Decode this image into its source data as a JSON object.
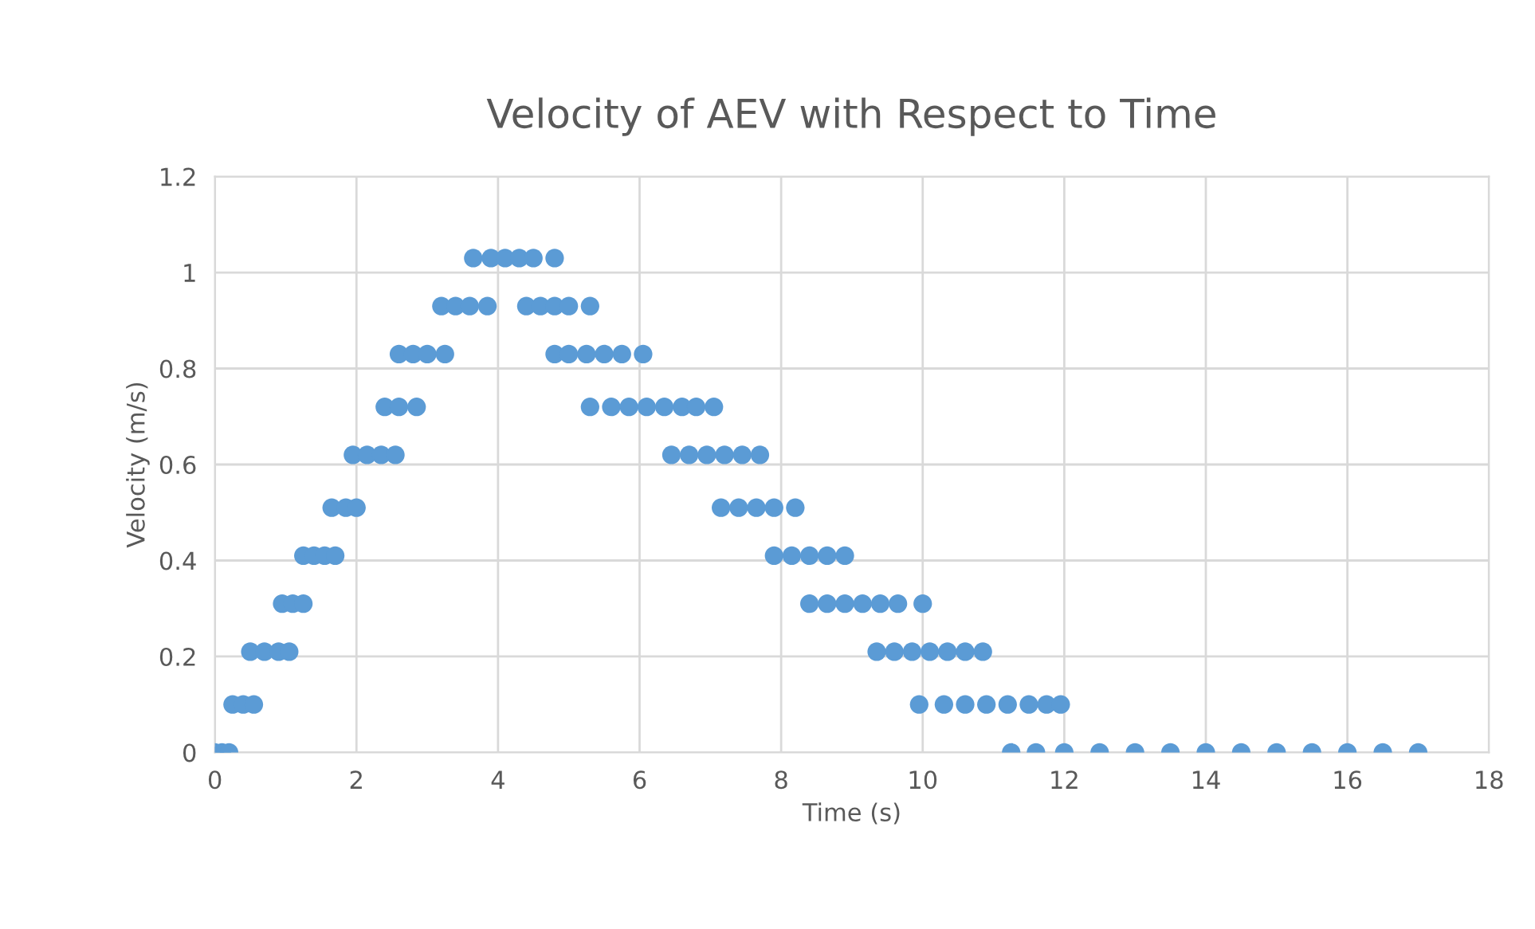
{
  "chart_data": {
    "type": "scatter",
    "title": "Velocity of AEV with Respect to Time",
    "xlabel": "Time (s)",
    "ylabel": "Velocity (m/s)",
    "xlim": [
      0,
      18
    ],
    "xticks": [
      0,
      2,
      4,
      6,
      8,
      10,
      12,
      14,
      16,
      18
    ],
    "ylim": [
      0,
      1.2
    ],
    "yticks": [
      0,
      0.2,
      0.4,
      0.6,
      0.8,
      1,
      1.2
    ],
    "grid": true,
    "marker": "circle",
    "series": [
      {
        "color": "#5b9bd5",
        "x": [
          0,
          0.1,
          0.2,
          0.25,
          0.4,
          0.55,
          0.5,
          0.7,
          0.9,
          1.05,
          0.95,
          1.1,
          1.25,
          1.25,
          1.4,
          1.55,
          1.7,
          1.65,
          1.85,
          2.0,
          1.95,
          2.15,
          2.35,
          2.55,
          2.4,
          2.6,
          2.85,
          2.6,
          2.8,
          3.0,
          3.25,
          3.2,
          3.4,
          3.6,
          3.85,
          3.65,
          3.9,
          4.1,
          4.3,
          4.5,
          4.8,
          4.4,
          4.6,
          4.8,
          5.0,
          5.3,
          4.8,
          5.0,
          5.25,
          5.5,
          5.75,
          6.05,
          5.3,
          5.6,
          5.85,
          6.1,
          6.35,
          6.6,
          6.8,
          7.05,
          6.45,
          6.7,
          6.95,
          7.2,
          7.45,
          7.7,
          7.15,
          7.4,
          7.65,
          7.9,
          8.2,
          7.9,
          8.15,
          8.4,
          8.65,
          8.9,
          8.4,
          8.65,
          8.9,
          9.15,
          9.4,
          9.65,
          10.0,
          9.35,
          9.6,
          9.85,
          10.1,
          10.35,
          10.6,
          10.85,
          9.95,
          10.3,
          10.6,
          10.9,
          11.2,
          11.5,
          11.75,
          11.95,
          11.25,
          11.6,
          12,
          12.5,
          13,
          13.5,
          14,
          14.5,
          15,
          15.5,
          16,
          16.5,
          17
        ],
        "values": [
          0,
          0,
          0,
          0.1,
          0.1,
          0.1,
          0.21,
          0.21,
          0.21,
          0.21,
          0.31,
          0.31,
          0.31,
          0.41,
          0.41,
          0.41,
          0.41,
          0.51,
          0.51,
          0.51,
          0.62,
          0.62,
          0.62,
          0.62,
          0.72,
          0.72,
          0.72,
          0.83,
          0.83,
          0.83,
          0.83,
          0.93,
          0.93,
          0.93,
          0.93,
          1.03,
          1.03,
          1.03,
          1.03,
          1.03,
          1.03,
          0.93,
          0.93,
          0.93,
          0.93,
          0.93,
          0.83,
          0.83,
          0.83,
          0.83,
          0.83,
          0.83,
          0.72,
          0.72,
          0.72,
          0.72,
          0.72,
          0.72,
          0.72,
          0.72,
          0.62,
          0.62,
          0.62,
          0.62,
          0.62,
          0.62,
          0.51,
          0.51,
          0.51,
          0.51,
          0.51,
          0.41,
          0.41,
          0.41,
          0.41,
          0.41,
          0.31,
          0.31,
          0.31,
          0.31,
          0.31,
          0.31,
          0.31,
          0.21,
          0.21,
          0.21,
          0.21,
          0.21,
          0.21,
          0.21,
          0.1,
          0.1,
          0.1,
          0.1,
          0.1,
          0.1,
          0.1,
          0.1,
          0,
          0,
          0,
          0,
          0,
          0,
          0,
          0,
          0,
          0,
          0,
          0,
          0
        ]
      }
    ]
  }
}
